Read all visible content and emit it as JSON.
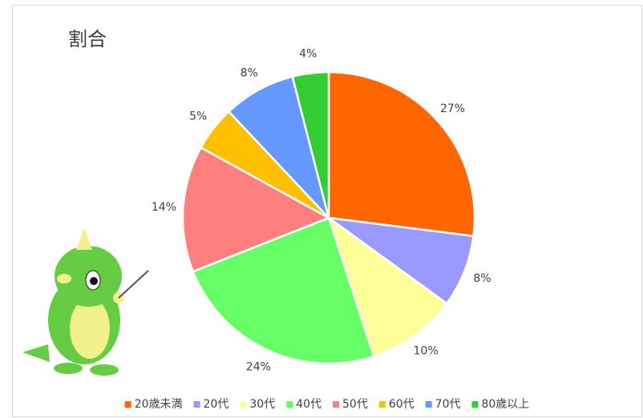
{
  "chart_data": {
    "type": "pie",
    "title": "割合",
    "categories": [
      "20歳未満",
      "20代",
      "30代",
      "40代",
      "50代",
      "60代",
      "70代",
      "80歳以上"
    ],
    "values": [
      27,
      8,
      10,
      24,
      14,
      5,
      8,
      4
    ],
    "value_labels": [
      "27%",
      "8%",
      "10%",
      "24%",
      "14%",
      "5%",
      "8%",
      "4%"
    ],
    "colors": [
      "#ff6600",
      "#9999ff",
      "#ffff99",
      "#66ff66",
      "#ff7f7f",
      "#ffc000",
      "#6699ff",
      "#33cc33"
    ],
    "legend": "bottom"
  }
}
